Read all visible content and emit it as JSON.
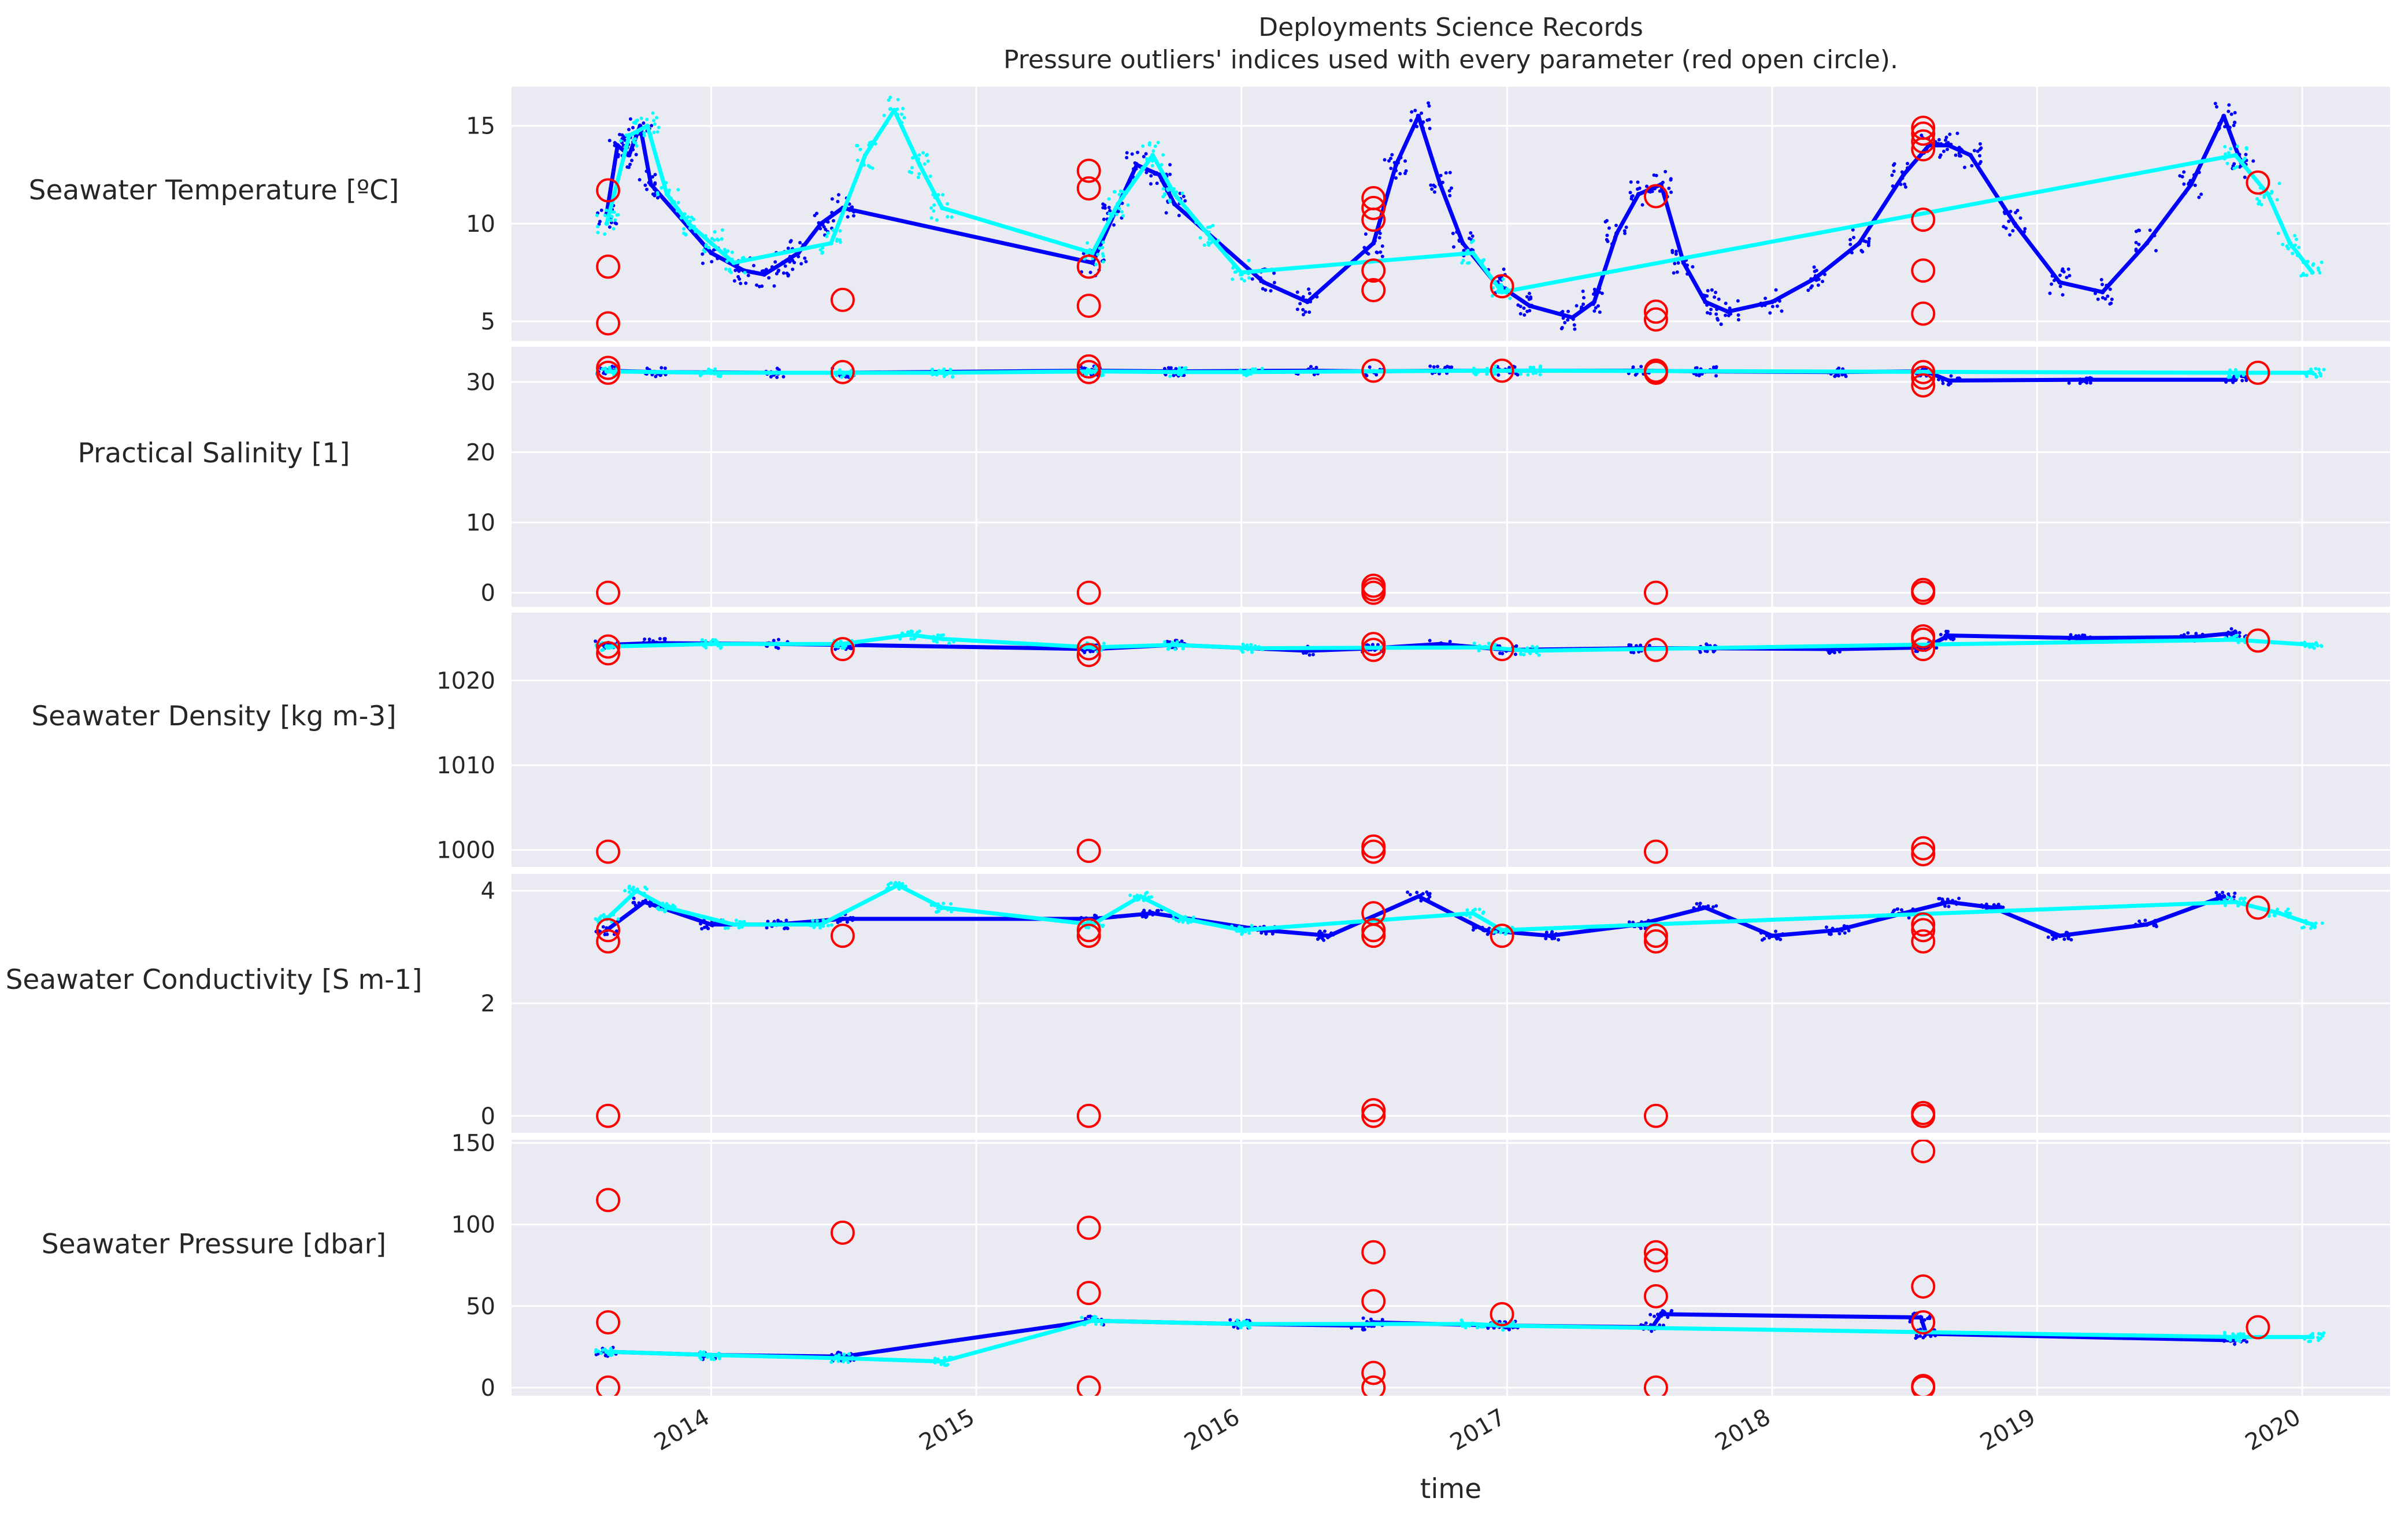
{
  "chart_data": {
    "type": "scatter",
    "title": "Deployments Science Records",
    "subtitle": "Pressure outliers' indices used with every parameter (red open circle).",
    "xlabel": "time",
    "x_ticks": [
      "2014",
      "2015",
      "2016",
      "2017",
      "2018",
      "2019",
      "2020"
    ],
    "xlim": [
      "2013-04-01",
      "2020-05-01"
    ],
    "grid": true,
    "colors": {
      "background": "#eaeaf2",
      "grid": "#ffffff",
      "series_a": "#0000ff",
      "series_b": "#00ffff",
      "outliers": "#ff0000"
    },
    "panels": [
      {
        "ylabel": "Seawater Temperature [ºC]",
        "ylim": [
          4,
          17
        ],
        "yticks": [
          "5",
          "10",
          "15"
        ],
        "series": [
          {
            "color": "blue",
            "x": [
              "2013-08-10",
              "2013-08-25",
              "2013-09-10",
              "2013-09-25",
              "2013-10-10",
              "2014-01-01",
              "2014-02-15",
              "2014-03-15",
              "2014-04-10",
              "2014-05-01",
              "2014-06-01",
              "2014-07-01",
              "2015-06-10",
              "2015-07-10",
              "2015-08-10",
              "2015-09-10",
              "2015-10-01",
              "2016-02-01",
              "2016-04-01",
              "2016-07-01",
              "2016-08-01",
              "2016-09-01",
              "2016-10-01",
              "2016-11-01",
              "2016-12-15",
              "2017-02-01",
              "2017-04-01",
              "2017-05-01",
              "2017-06-01",
              "2017-07-01",
              "2017-08-01",
              "2017-09-01",
              "2017-10-01",
              "2017-11-01",
              "2018-01-01",
              "2018-03-01",
              "2018-05-01",
              "2018-07-01",
              "2018-08-05",
              "2018-09-01",
              "2018-10-01",
              "2018-12-01",
              "2019-02-01",
              "2019-04-01",
              "2019-06-01",
              "2019-08-01",
              "2019-09-15",
              "2019-10-10"
            ],
            "y": [
              10.5,
              14.0,
              13.5,
              15.0,
              12.0,
              8.5,
              7.6,
              7.4,
              8.0,
              8.5,
              10.0,
              10.8,
              8.0,
              10.5,
              13.0,
              12.5,
              11.0,
              7.0,
              6.0,
              9.0,
              13.0,
              15.5,
              12.0,
              9.0,
              7.0,
              5.8,
              5.2,
              6.0,
              9.5,
              11.5,
              12.0,
              8.0,
              6.0,
              5.5,
              6.0,
              7.2,
              9.0,
              12.5,
              14.0,
              14.0,
              13.5,
              10.0,
              7.0,
              6.5,
              9.0,
              12.0,
              15.5,
              13.0
            ]
          },
          {
            "color": "cyan",
            "x": [
              "2013-08-10",
              "2013-09-10",
              "2013-10-05",
              "2013-11-01",
              "2013-12-01",
              "2014-01-01",
              "2014-02-01",
              "2014-06-15",
              "2014-08-01",
              "2014-09-10",
              "2014-10-15",
              "2014-11-15",
              "2015-06-10",
              "2015-07-15",
              "2015-09-01",
              "2015-10-01",
              "2015-11-15",
              "2016-01-01",
              "2016-11-15",
              "2016-12-25",
              "2019-10-01",
              "2019-11-15",
              "2019-12-15",
              "2020-01-15"
            ],
            "y": [
              10.0,
              14.5,
              15.0,
              11.5,
              10.0,
              9.0,
              8.0,
              9.0,
              13.5,
              15.8,
              13.0,
              10.8,
              8.5,
              11.0,
              13.5,
              11.5,
              9.5,
              7.5,
              8.5,
              6.5,
              13.5,
              11.5,
              9.0,
              7.5
            ]
          }
        ],
        "outliers": {
          "x": [
            "2013-08-12",
            "2013-08-12",
            "2013-08-12",
            "2014-07-01",
            "2015-06-05",
            "2015-06-05",
            "2015-06-05",
            "2015-06-05",
            "2016-07-01",
            "2016-07-01",
            "2016-07-01",
            "2016-07-01",
            "2016-07-01",
            "2016-12-25",
            "2017-07-25",
            "2017-07-25",
            "2017-07-25",
            "2018-07-28",
            "2018-07-28",
            "2018-07-28",
            "2018-07-28",
            "2018-07-28",
            "2018-07-28",
            "2018-07-28",
            "2019-11-01"
          ],
          "y": [
            11.7,
            7.8,
            4.9,
            6.1,
            12.7,
            11.8,
            7.8,
            5.8,
            11.3,
            10.8,
            10.2,
            7.6,
            6.6,
            6.8,
            11.4,
            5.5,
            5.1,
            14.6,
            14.2,
            13.8,
            10.2,
            7.6,
            5.4,
            14.9,
            12.1
          ]
        }
      },
      {
        "ylabel": "Practical Salinity [1]",
        "ylim": [
          -2,
          35
        ],
        "yticks": [
          "0",
          "10",
          "20",
          "30"
        ],
        "series": [
          {
            "color": "blue",
            "x": [
              "2013-08-10",
              "2013-10-15",
              "2014-04-01",
              "2014-07-01",
              "2015-06-10",
              "2015-10-01",
              "2016-04-01",
              "2016-07-01",
              "2016-10-01",
              "2017-01-01",
              "2017-07-01",
              "2017-10-01",
              "2018-04-01",
              "2018-08-01",
              "2018-09-01",
              "2019-03-01",
              "2019-10-01"
            ],
            "y": [
              31.6,
              31.4,
              31.3,
              31.3,
              31.6,
              31.5,
              31.6,
              31.5,
              31.6,
              31.6,
              31.6,
              31.5,
              31.4,
              31.5,
              30.2,
              30.3,
              30.3
            ]
          },
          {
            "color": "cyan",
            "x": [
              "2013-08-10",
              "2014-01-01",
              "2014-07-01",
              "2014-11-15",
              "2015-06-10",
              "2015-10-01",
              "2016-01-15",
              "2016-12-01",
              "2017-02-01",
              "2019-10-01",
              "2020-01-15"
            ],
            "y": [
              31.5,
              31.3,
              31.3,
              31.3,
              31.5,
              31.4,
              31.4,
              31.6,
              31.6,
              31.3,
              31.3
            ]
          }
        ],
        "outliers": {
          "x": [
            "2013-08-12",
            "2013-08-12",
            "2013-08-12",
            "2014-07-01",
            "2015-06-05",
            "2015-06-05",
            "2015-06-05",
            "2016-07-01",
            "2016-07-01",
            "2016-07-01",
            "2016-07-01",
            "2016-12-25",
            "2017-07-25",
            "2017-07-25",
            "2017-07-25",
            "2018-07-28",
            "2018-07-28",
            "2018-07-28",
            "2018-07-28",
            "2018-07-28",
            "2019-11-01"
          ],
          "y": [
            32.0,
            31.3,
            0,
            31.4,
            32.2,
            31.4,
            0,
            31.6,
            1.0,
            0.5,
            0,
            31.6,
            31.6,
            31.3,
            0,
            31.4,
            30.6,
            29.5,
            0.4,
            0,
            31.3
          ]
        }
      },
      {
        "ylabel": "Seawater Density [kg m-3]",
        "ylim": [
          998,
          1028
        ],
        "yticks": [
          "1000",
          "1010",
          "1020"
        ],
        "series": [
          {
            "color": "blue",
            "x": [
              "2013-08-10",
              "2013-10-15",
              "2014-04-01",
              "2014-07-01",
              "2015-06-10",
              "2015-10-01",
              "2016-04-01",
              "2016-07-01",
              "2016-10-01",
              "2017-01-01",
              "2017-07-01",
              "2017-10-01",
              "2018-04-01",
              "2018-08-01",
              "2018-09-01",
              "2019-03-01",
              "2019-08-01",
              "2019-10-01"
            ],
            "y": [
              1024.2,
              1024.4,
              1024.3,
              1024.2,
              1023.7,
              1024.2,
              1023.5,
              1023.8,
              1024.3,
              1023.6,
              1023.8,
              1023.8,
              1023.7,
              1023.9,
              1025.3,
              1025.0,
              1025.1,
              1025.6
            ]
          },
          {
            "color": "cyan",
            "x": [
              "2013-08-10",
              "2014-01-01",
              "2014-07-01",
              "2014-10-01",
              "2014-11-15",
              "2015-06-10",
              "2015-10-01",
              "2016-01-15",
              "2016-12-01",
              "2017-02-01",
              "2019-10-01",
              "2020-01-15"
            ],
            "y": [
              1024.0,
              1024.3,
              1024.3,
              1025.4,
              1024.9,
              1023.9,
              1024.2,
              1023.8,
              1023.9,
              1023.5,
              1024.8,
              1024.2
            ]
          }
        ],
        "outliers": {
          "x": [
            "2013-08-12",
            "2013-08-12",
            "2013-08-12",
            "2014-07-01",
            "2015-06-05",
            "2015-06-05",
            "2015-06-05",
            "2016-07-01",
            "2016-07-01",
            "2016-07-01",
            "2016-07-01",
            "2016-12-25",
            "2017-07-25",
            "2017-07-25",
            "2018-07-28",
            "2018-07-28",
            "2018-07-28",
            "2018-07-28",
            "2018-07-28",
            "2019-11-01"
          ],
          "y": [
            1023.2,
            1024.0,
            999.8,
            1023.7,
            1023.0,
            1023.8,
            999.9,
            1023.6,
            1024.3,
            1000.4,
            999.8,
            1023.7,
            1023.6,
            999.8,
            1023.7,
            1024.8,
            1025.2,
            1000.2,
            999.5,
            1024.7
          ]
        }
      },
      {
        "ylabel": "Seawater Conductivity [S m-1]",
        "ylim": [
          -0.3,
          4.3
        ],
        "yticks": [
          "0",
          "2",
          "4"
        ],
        "series": [
          {
            "color": "blue",
            "x": [
              "2013-08-10",
              "2013-10-01",
              "2014-01-01",
              "2014-04-01",
              "2014-07-01",
              "2015-06-10",
              "2015-09-01",
              "2016-02-01",
              "2016-05-01",
              "2016-09-01",
              "2016-12-01",
              "2017-03-01",
              "2017-07-01",
              "2017-10-01",
              "2018-01-01",
              "2018-04-01",
              "2018-07-01",
              "2018-09-01",
              "2018-11-01",
              "2019-02-01",
              "2019-06-01",
              "2019-09-15"
            ],
            "y": [
              3.3,
              3.8,
              3.4,
              3.4,
              3.5,
              3.5,
              3.6,
              3.3,
              3.2,
              3.9,
              3.3,
              3.2,
              3.4,
              3.7,
              3.2,
              3.3,
              3.6,
              3.8,
              3.7,
              3.2,
              3.4,
              3.9
            ]
          },
          {
            "color": "cyan",
            "x": [
              "2013-08-10",
              "2013-09-20",
              "2013-11-01",
              "2014-02-01",
              "2014-06-01",
              "2014-09-15",
              "2014-11-15",
              "2015-06-10",
              "2015-08-15",
              "2015-10-15",
              "2016-01-01",
              "2016-11-15",
              "2016-12-25",
              "2019-10-01",
              "2019-12-01",
              "2020-01-15"
            ],
            "y": [
              3.5,
              4.0,
              3.7,
              3.4,
              3.4,
              4.1,
              3.7,
              3.4,
              3.9,
              3.5,
              3.3,
              3.6,
              3.3,
              3.8,
              3.6,
              3.4
            ]
          }
        ],
        "outliers": {
          "x": [
            "2013-08-12",
            "2013-08-12",
            "2013-08-12",
            "2014-07-01",
            "2015-06-05",
            "2015-06-05",
            "2015-06-05",
            "2016-07-01",
            "2016-07-01",
            "2016-07-01",
            "2016-07-01",
            "2016-07-01",
            "2016-12-25",
            "2017-07-25",
            "2017-07-25",
            "2017-07-25",
            "2018-07-28",
            "2018-07-28",
            "2018-07-28",
            "2018-07-28",
            "2018-07-28",
            "2019-11-01"
          ],
          "y": [
            3.3,
            3.1,
            0,
            3.2,
            3.3,
            3.2,
            0,
            3.6,
            3.3,
            3.2,
            0.1,
            0,
            3.2,
            3.2,
            3.1,
            0,
            3.4,
            3.3,
            3.1,
            0.05,
            0,
            3.7
          ]
        }
      },
      {
        "ylabel": "Seawater Pressure [dbar]",
        "ylim": [
          -5,
          152
        ],
        "yticks": [
          "0",
          "50",
          "100",
          "150"
        ],
        "series": [
          {
            "color": "blue",
            "x": [
              "2013-08-10",
              "2014-01-01",
              "2014-07-01",
              "2015-06-10",
              "2016-01-01",
              "2016-06-15",
              "2016-07-01",
              "2016-12-20",
              "2017-01-01",
              "2017-07-20",
              "2017-08-01",
              "2018-07-25",
              "2018-08-01",
              "2019-10-01"
            ],
            "y": [
              22.0,
              20.0,
              19.0,
              41.0,
              39.0,
              38.0,
              40.0,
              38.0,
              38.0,
              37.0,
              45.0,
              43.0,
              33.0,
              29.0
            ]
          },
          {
            "color": "cyan",
            "x": [
              "2013-08-10",
              "2014-01-01",
              "2014-07-01",
              "2014-11-15",
              "2015-06-10",
              "2016-01-01",
              "2016-11-15",
              "2016-12-25",
              "2019-10-01",
              "2020-01-15"
            ],
            "y": [
              22.0,
              20.0,
              18.0,
              16.0,
              41.0,
              39.0,
              39.0,
              38.0,
              31.0,
              31.0
            ]
          }
        ],
        "outliers": {
          "x": [
            "2013-08-12",
            "2013-08-12",
            "2013-08-12",
            "2014-07-01",
            "2015-06-05",
            "2015-06-05",
            "2015-06-05",
            "2016-07-01",
            "2016-07-01",
            "2016-07-01",
            "2016-07-01",
            "2016-12-25",
            "2017-07-25",
            "2017-07-25",
            "2017-07-25",
            "2017-07-25",
            "2018-07-28",
            "2018-07-28",
            "2018-07-28",
            "2018-07-28",
            "2018-07-28",
            "2019-11-01"
          ],
          "y": [
            115,
            40,
            0,
            95,
            98,
            58,
            0,
            83,
            53,
            9,
            0,
            45,
            83,
            78,
            56,
            0,
            145,
            62,
            40,
            1,
            0,
            37
          ]
        }
      }
    ]
  }
}
